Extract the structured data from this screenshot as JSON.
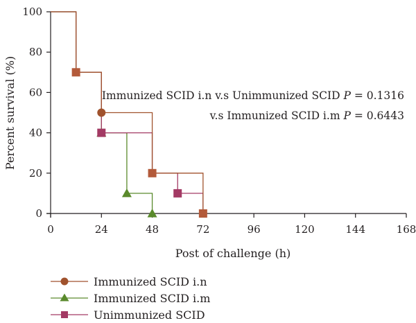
{
  "chart_data": {
    "type": "line",
    "subtype": "kaplan-meier-step",
    "xlabel": "Post of challenge (h)",
    "ylabel": "Percent survival (%)",
    "xlim": [
      0,
      168
    ],
    "ylim": [
      0,
      100
    ],
    "x_ticks": [
      "0",
      "24",
      "48",
      "72",
      "96",
      "120",
      "144",
      "168"
    ],
    "y_ticks": [
      "0",
      "20",
      "40",
      "60",
      "80",
      "100"
    ],
    "grid": false,
    "legend_position": "bottom-left",
    "annotations": [
      {
        "text": "Immunized SCID i.n v.s Unimmunized SCID",
        "p_label": "P",
        "p_value": "= 0.1316"
      },
      {
        "text": "v.s Immunized SCID i.m",
        "p_label": "P",
        "p_value": "= 0.6443"
      }
    ],
    "series": [
      {
        "name": "Immunized SCID i.n",
        "color": "#a0522d",
        "marker": "circle",
        "x": [
          0,
          12,
          24,
          48,
          72
        ],
        "y": [
          100,
          70,
          50,
          20,
          0
        ],
        "markers": [
          [
            24,
            50
          ]
        ]
      },
      {
        "name": "Immunized SCID i.m",
        "color": "#5a8a2c",
        "marker": "triangle",
        "x": [
          0,
          12,
          24,
          36,
          48
        ],
        "y": [
          100,
          70,
          40,
          10,
          0
        ],
        "markers": [
          [
            24,
            40
          ],
          [
            36,
            10
          ],
          [
            48,
            0
          ]
        ]
      },
      {
        "name": "Unimmunized SCID",
        "color": "#a33a64",
        "marker": "square",
        "x": [
          0,
          12,
          24,
          48,
          60,
          72
        ],
        "y": [
          100,
          70,
          40,
          20,
          10,
          0
        ],
        "markers": [
          [
            24,
            40
          ],
          [
            60,
            10
          ]
        ]
      }
    ],
    "overlay_markers": [
      {
        "x": 12,
        "y": 70,
        "marker": "square",
        "color": "#b35a3a"
      },
      {
        "x": 48,
        "y": 20,
        "marker": "square",
        "color": "#b35a3a"
      },
      {
        "x": 72,
        "y": 0,
        "marker": "square",
        "color": "#b35a3a"
      }
    ]
  }
}
